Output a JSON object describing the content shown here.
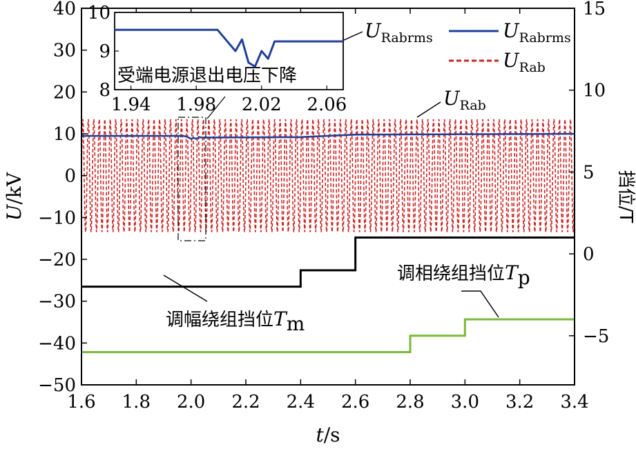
{
  "chart_data": {
    "type": "line",
    "xlabel_main": "t",
    "xlabel_unit": "/s",
    "ylabel_main": "U",
    "ylabel_unit": "/kV",
    "ylabel_right": "挡位/T",
    "xlim": [
      1.6,
      3.4
    ],
    "ylim_left": [
      -50,
      40
    ],
    "ylim_right": [
      -8,
      15
    ],
    "x_ticks": [
      "1.6",
      "1.8",
      "2.0",
      "2.2",
      "2.4",
      "2.6",
      "2.8",
      "3.0",
      "3.2",
      "3.4"
    ],
    "y_ticks_left": [
      "-50",
      "-40",
      "-30",
      "-20",
      "-10",
      "0",
      "10",
      "20",
      "30",
      "40"
    ],
    "y_ticks_right": [
      "-5",
      "0",
      "5",
      "10",
      "15"
    ],
    "legend": [
      {
        "main": "U",
        "sub": "Rabrms",
        "color": "#1f3f9a",
        "style": "solid"
      },
      {
        "main": "U",
        "sub": "Rab",
        "color": "#cc2222",
        "style": "dashed"
      }
    ],
    "series": [
      {
        "name": "URabrms",
        "color": "#1f3f9a",
        "x": [
          1.6,
          1.97,
          1.985,
          2.0,
          2.01,
          2.02,
          2.03,
          2.04,
          2.4,
          2.6,
          3.4
        ],
        "y": [
          9.5,
          9.5,
          9.3,
          8.8,
          9.0,
          8.8,
          9.2,
          9.1,
          9.2,
          9.8,
          10.0
        ]
      },
      {
        "name": "URab",
        "color": "#cc2222",
        "amplitude_kV": 13.5,
        "frequency_hz": 50,
        "x_range": [
          1.6,
          3.4
        ]
      },
      {
        "name": "Tm",
        "color": "#000000",
        "x": [
          1.6,
          2.4,
          2.4,
          2.6,
          2.6,
          3.4
        ],
        "y": [
          -2,
          -2,
          -1,
          -1,
          1,
          1
        ]
      },
      {
        "name": "Tp",
        "color": "#7ab83a",
        "x": [
          1.6,
          2.8,
          2.8,
          3.0,
          3.0,
          3.4
        ],
        "y": [
          -6,
          -6,
          -5,
          -5,
          -4,
          -4
        ]
      }
    ],
    "annotations": {
      "rab": {
        "main": "U",
        "sub": "Rab"
      },
      "rabrms_inset": {
        "main": "U",
        "sub": "Rabrms"
      },
      "tm": {
        "text": "调幅绕组挡位",
        "main": "T",
        "sub": "m"
      },
      "tp": {
        "text": "调相绕组挡位",
        "main": "T",
        "sub": "p"
      }
    },
    "inset": {
      "title": "受端电源退出电压下降",
      "xlim": [
        1.93,
        2.07
      ],
      "ylim": [
        8,
        10
      ],
      "x_ticks": [
        "1.94",
        "1.98",
        "2.02",
        "2.06"
      ],
      "y_ticks": [
        "8",
        "9",
        "10"
      ],
      "x": [
        1.93,
        1.993,
        2.0,
        2.004,
        2.008,
        2.012,
        2.016,
        2.02,
        2.024,
        2.028,
        2.035,
        2.07
      ],
      "y": [
        9.55,
        9.55,
        9.2,
        9.0,
        9.3,
        8.7,
        8.6,
        9.0,
        8.8,
        9.25,
        9.25,
        9.25
      ]
    },
    "grid": false
  }
}
